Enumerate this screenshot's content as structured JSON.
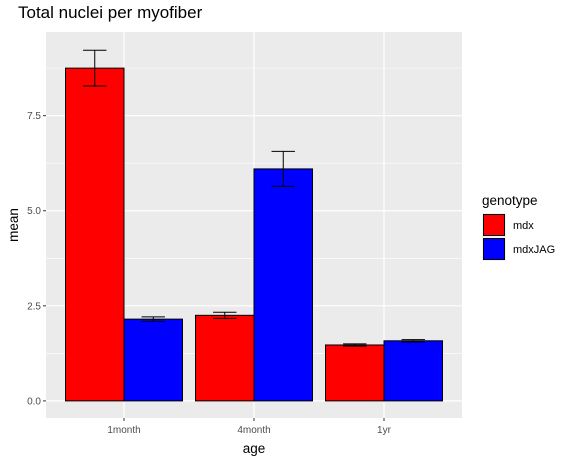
{
  "chart_data": {
    "type": "bar",
    "title": "Total nuclei per myofiber",
    "xlabel": "age",
    "ylabel": "mean",
    "categories": [
      "1month",
      "4month",
      "1yr"
    ],
    "series": [
      {
        "name": "mdx",
        "color": "#ff0000",
        "values": [
          8.75,
          2.25,
          1.47
        ],
        "error_low": [
          8.28,
          2.17,
          1.44
        ],
        "error_high": [
          9.22,
          2.33,
          1.5
        ]
      },
      {
        "name": "mdxJAG",
        "color": "#0000ff",
        "values": [
          2.15,
          6.1,
          1.58
        ],
        "error_low": [
          2.09,
          5.64,
          1.55
        ],
        "error_high": [
          2.21,
          6.56,
          1.61
        ]
      }
    ],
    "ylim": [
      -0.45,
      9.7
    ],
    "yticks": [
      0.0,
      2.5,
      5.0,
      7.5
    ],
    "ytick_labels": [
      "0.0",
      "2.5",
      "5.0",
      "7.5"
    ],
    "grid": true,
    "legend": {
      "title": "genotype",
      "position": "right"
    }
  }
}
